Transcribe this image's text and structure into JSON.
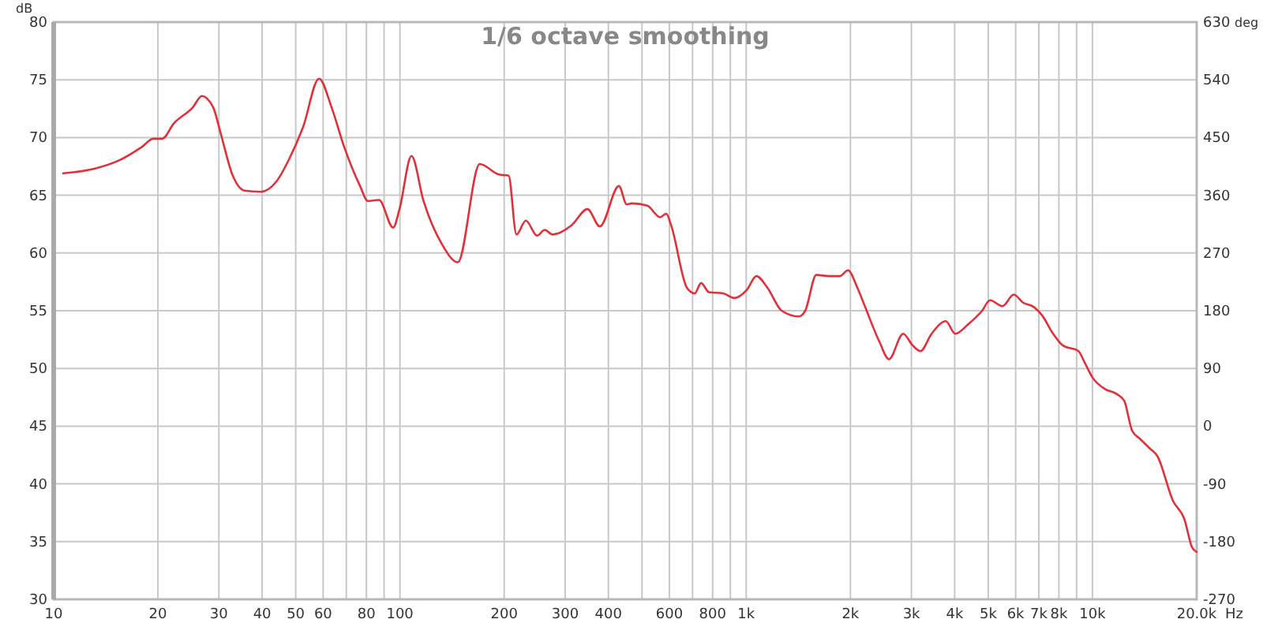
{
  "chart_data": {
    "type": "line",
    "title": "1/6 octave smoothing",
    "xlabel": "Hz",
    "ylabel": "dB",
    "y2label": "deg",
    "log": "x",
    "grid": true,
    "marker": "none",
    "line_style": "solid",
    "xlim": [
      10,
      20000
    ],
    "xticks": [
      10,
      20,
      30,
      40,
      50,
      60,
      {
        "value": 70,
        "label": null
      },
      80,
      {
        "value": 90,
        "label": null
      },
      100,
      200,
      300,
      400,
      {
        "value": 500,
        "label": null
      },
      600,
      {
        "value": 700,
        "label": null
      },
      800,
      {
        "value": 900,
        "label": null
      },
      {
        "value": 1000,
        "label": "1k"
      },
      {
        "value": 2000,
        "label": "2k"
      },
      {
        "value": 3000,
        "label": "3k"
      },
      {
        "value": 4000,
        "label": "4k"
      },
      {
        "value": 5000,
        "label": "5k"
      },
      {
        "value": 6000,
        "label": "6k"
      },
      {
        "value": 7000,
        "label": "7k"
      },
      {
        "value": 8000,
        "label": "8k"
      },
      {
        "value": 9000,
        "label": null
      },
      {
        "value": 10000,
        "label": "10k"
      },
      {
        "value": 20000,
        "label": "20.0k"
      }
    ],
    "ylim": [
      30,
      80
    ],
    "yticks": [
      30,
      35,
      40,
      45,
      50,
      55,
      60,
      65,
      70,
      75,
      80
    ],
    "y2lim": [
      -270,
      630
    ],
    "y2ticks": [
      -270,
      -180,
      -90,
      0,
      90,
      180,
      270,
      360,
      450,
      540,
      630
    ],
    "series": [
      {
        "color": "#e0303a",
        "x": [
          10.65,
          13.1,
          15.4,
          18,
          19.4,
          20.6,
          22.2,
          25.2,
          26.8,
          28.9,
          30.4,
          32.8,
          35.6,
          39.6,
          44,
          47.8,
          52.5,
          58.4,
          63.5,
          69,
          76.7,
          80.8,
          87,
          95.6,
          99.7,
          108,
          117,
          132,
          147,
          170,
          193,
          206,
          217,
          231,
          249,
          262,
          276,
          313,
          348,
          378,
          429,
          452,
          467,
          518,
          564,
          588,
          607,
          674,
          710,
          741,
          781,
          858,
          923,
          1004,
          1070,
          1151,
          1266,
          1420,
          1481,
          1594,
          1734,
          1866,
          1966,
          2094,
          2207,
          2426,
          2584,
          2840,
          3024,
          3187,
          3430,
          3771,
          4016,
          4367,
          4800,
          5058,
          5503,
          5923,
          6306,
          6787,
          7154,
          7700,
          8200,
          9110,
          9500,
          10010,
          10890,
          11720,
          12350,
          13020,
          13720,
          14610,
          15400,
          17100,
          18400,
          19400,
          20000
        ],
        "values": [
          66.9,
          67.3,
          68,
          69.2,
          69.9,
          69.9,
          71.2,
          72.6,
          73.6,
          72.6,
          70.3,
          66.8,
          65.4,
          65.3,
          66.2,
          68.1,
          70.9,
          75.1,
          72.6,
          69.2,
          65.8,
          64.5,
          64.6,
          62.2,
          63.8,
          68.4,
          64.5,
          60.8,
          59.2,
          67.7,
          66.8,
          66.7,
          61.6,
          62.8,
          61.5,
          62,
          61.6,
          62.4,
          63.8,
          62.3,
          65.8,
          64.2,
          64.3,
          64.1,
          63.1,
          63.4,
          62.4,
          57,
          56.5,
          57.4,
          56.6,
          56.5,
          56.1,
          56.8,
          58,
          57,
          55,
          54.5,
          55,
          58.1,
          58,
          58,
          58.5,
          57,
          55.3,
          52.3,
          50.8,
          53,
          52,
          51.5,
          53,
          54.1,
          53,
          53.8,
          55,
          55.9,
          55.4,
          56.4,
          55.7,
          55.3,
          54.6,
          53,
          52,
          51.5,
          50.5,
          49.2,
          48.2,
          47.8,
          47.2,
          44.6,
          43.9,
          43.1,
          42.4,
          38.5,
          37,
          34.5,
          34.1
        ]
      }
    ]
  }
}
